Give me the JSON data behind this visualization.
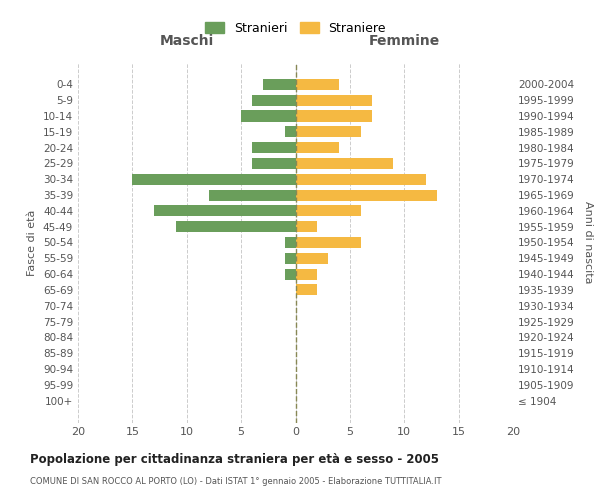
{
  "age_groups": [
    "0-4",
    "5-9",
    "10-14",
    "15-19",
    "20-24",
    "25-29",
    "30-34",
    "35-39",
    "40-44",
    "45-49",
    "50-54",
    "55-59",
    "60-64",
    "65-69",
    "70-74",
    "75-79",
    "80-84",
    "85-89",
    "90-94",
    "95-99",
    "100+"
  ],
  "birth_years": [
    "2000-2004",
    "1995-1999",
    "1990-1994",
    "1985-1989",
    "1980-1984",
    "1975-1979",
    "1970-1974",
    "1965-1969",
    "1960-1964",
    "1955-1959",
    "1950-1954",
    "1945-1949",
    "1940-1944",
    "1935-1939",
    "1930-1934",
    "1925-1929",
    "1920-1924",
    "1915-1919",
    "1910-1914",
    "1905-1909",
    "≤ 1904"
  ],
  "maschi": [
    3,
    4,
    5,
    1,
    4,
    4,
    15,
    8,
    13,
    11,
    1,
    1,
    1,
    0,
    0,
    0,
    0,
    0,
    0,
    0,
    0
  ],
  "femmine": [
    4,
    7,
    7,
    6,
    4,
    9,
    12,
    13,
    6,
    2,
    6,
    3,
    2,
    2,
    0,
    0,
    0,
    0,
    0,
    0,
    0
  ],
  "color_maschi": "#6a9e5b",
  "color_femmine": "#f5b942",
  "title": "Popolazione per cittadinanza straniera per età e sesso - 2005",
  "subtitle": "COMUNE DI SAN ROCCO AL PORTO (LO) - Dati ISTAT 1° gennaio 2005 - Elaborazione TUTTITALIA.IT",
  "xlabel_left": "Maschi",
  "xlabel_right": "Femmine",
  "ylabel_left": "Fasce di età",
  "ylabel_right": "Anni di nascita",
  "legend_maschi": "Stranieri",
  "legend_femmine": "Straniere",
  "xlim": 20,
  "background_color": "#ffffff",
  "grid_color": "#cccccc"
}
